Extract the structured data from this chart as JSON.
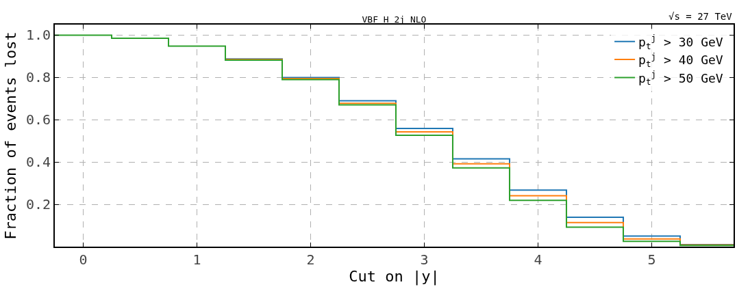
{
  "chart_data": {
    "type": "step",
    "title": "VBF H 2j NLO",
    "xlabel": "Cut on |y|",
    "ylabel": "Fraction of events lost",
    "annotations": [
      "√s = 27 TeV"
    ],
    "x": [
      -0.25,
      0.25,
      0.75,
      1.25,
      1.75,
      2.25,
      2.75,
      3.25,
      3.75,
      4.25,
      4.75,
      5.25,
      5.72
    ],
    "series": [
      {
        "name": "p$_{t}$$^{j}$ > 30 GeV",
        "color": "#1f77b4",
        "values": [
          null,
          null,
          null,
          0.888,
          0.8,
          0.69,
          0.559,
          0.415,
          0.267,
          0.139,
          0.05,
          0.01,
          0.01
        ]
      },
      {
        "name": "p$_{t}$$^{j}$ > 40 GeV",
        "color": "#ff7f0e",
        "values": [
          null,
          null,
          null,
          0.885,
          0.795,
          0.678,
          0.543,
          0.392,
          0.241,
          0.114,
          0.036,
          0.008,
          0.008
        ]
      },
      {
        "name": "p$_{t}$$^{j}$ > 50 GeV",
        "color": "#2ca02c",
        "values": [
          1.0,
          0.985,
          0.948,
          0.882,
          0.79,
          0.67,
          0.527,
          0.372,
          0.219,
          0.092,
          0.025,
          0.006,
          0.006
        ]
      }
    ],
    "xlim": [
      -0.25,
      5.72
    ],
    "ylim": [
      0,
      1.05
    ],
    "xticks": [
      0,
      1,
      2,
      3,
      4,
      5
    ],
    "yticks": [
      {
        "value": 0.2,
        "label": "0.2"
      },
      {
        "value": 0.4,
        "label": "0.4"
      },
      {
        "value": 0.6,
        "label": "0.6"
      },
      {
        "value": 0.8,
        "label": "0.8"
      },
      {
        "value": 1,
        "label": "1.0"
      }
    ],
    "grid": true,
    "legend": "top right",
    "line_style": "solid",
    "marker": "none"
  }
}
